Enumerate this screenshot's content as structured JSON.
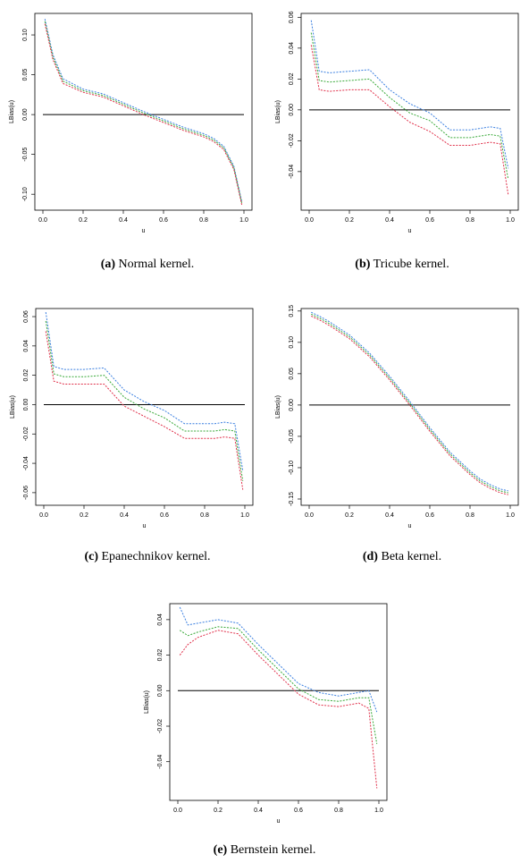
{
  "chart_data": [
    {
      "type": "line",
      "caption_label": "(a)",
      "caption": "Normal kernel.",
      "xlabel": "u",
      "ylabel": "LBias(u)",
      "x": [
        0.01,
        0.05,
        0.1,
        0.2,
        0.3,
        0.4,
        0.5,
        0.6,
        0.7,
        0.8,
        0.85,
        0.9,
        0.95,
        0.99
      ],
      "series": [
        {
          "color": "#3a7fe0",
          "values": [
            0.12,
            0.075,
            0.045,
            0.032,
            0.026,
            0.015,
            0.004,
            -0.006,
            -0.016,
            -0.024,
            -0.03,
            -0.04,
            -0.065,
            -0.11
          ]
        },
        {
          "color": "#3aaa3a",
          "values": [
            0.117,
            0.072,
            0.042,
            0.03,
            0.024,
            0.013,
            0.002,
            -0.008,
            -0.018,
            -0.026,
            -0.032,
            -0.042,
            -0.067,
            -0.112
          ]
        },
        {
          "color": "#e0304a",
          "values": [
            0.114,
            0.069,
            0.039,
            0.028,
            0.022,
            0.011,
            0.0,
            -0.01,
            -0.02,
            -0.028,
            -0.034,
            -0.044,
            -0.069,
            -0.114
          ]
        }
      ],
      "reference_line": 0,
      "xlim": [
        -0.04,
        1.04
      ],
      "ylim": [
        -0.12,
        0.127
      ],
      "xticks": [
        {
          "value": 0,
          "label": "0.0"
        },
        {
          "value": 0.2,
          "label": "0.2"
        },
        {
          "value": 0.4,
          "label": "0.4"
        },
        {
          "value": 0.6,
          "label": "0.6"
        },
        {
          "value": 0.8,
          "label": "0.8"
        },
        {
          "value": 1,
          "label": "1.0"
        }
      ],
      "yticks": [
        {
          "value": -0.1,
          "label": "-0.10"
        },
        -0.05,
        {
          "value": 0,
          "label": "0.00"
        },
        0.05,
        {
          "value": 0.1,
          "label": "0.10"
        }
      ]
    },
    {
      "type": "line",
      "caption_label": "(b)",
      "caption": "Tricube kernel.",
      "xlabel": "u",
      "ylabel": "LBias(u)",
      "x": [
        0.01,
        0.05,
        0.1,
        0.2,
        0.3,
        0.4,
        0.5,
        0.6,
        0.7,
        0.8,
        0.85,
        0.9,
        0.95,
        0.99
      ],
      "series": [
        {
          "color": "#3a7fe0",
          "values": [
            0.058,
            0.025,
            0.024,
            0.025,
            0.026,
            0.013,
            0.004,
            -0.002,
            -0.013,
            -0.013,
            -0.012,
            -0.011,
            -0.012,
            -0.038
          ]
        },
        {
          "color": "#3aaa3a",
          "values": [
            0.05,
            0.019,
            0.018,
            0.019,
            0.02,
            0.008,
            -0.002,
            -0.007,
            -0.018,
            -0.018,
            -0.017,
            -0.016,
            -0.017,
            -0.045
          ]
        },
        {
          "color": "#e0304a",
          "values": [
            0.042,
            0.013,
            0.012,
            0.013,
            0.013,
            0.002,
            -0.008,
            -0.014,
            -0.023,
            -0.023,
            -0.022,
            -0.021,
            -0.022,
            -0.055
          ]
        }
      ],
      "reference_line": 0,
      "xlim": [
        -0.04,
        1.04
      ],
      "ylim": [
        -0.065,
        0.0625
      ],
      "xticks": [
        {
          "value": 0,
          "label": "0.0"
        },
        {
          "value": 0.2,
          "label": "0.2"
        },
        {
          "value": 0.4,
          "label": "0.4"
        },
        {
          "value": 0.6,
          "label": "0.6"
        },
        {
          "value": 0.8,
          "label": "0.8"
        },
        {
          "value": 1,
          "label": "1.0"
        }
      ],
      "yticks": [
        -0.04,
        -0.02,
        {
          "value": 0,
          "label": "0.00"
        },
        0.02,
        0.04,
        0.06
      ]
    },
    {
      "type": "line",
      "caption_label": "(c)",
      "caption": "Epanechnikov kernel.",
      "xlabel": "u",
      "ylabel": "LBias(u)",
      "x": [
        0.01,
        0.05,
        0.1,
        0.2,
        0.3,
        0.4,
        0.5,
        0.6,
        0.7,
        0.8,
        0.85,
        0.9,
        0.95,
        0.99
      ],
      "series": [
        {
          "color": "#3a7fe0",
          "values": [
            0.063,
            0.026,
            0.024,
            0.024,
            0.025,
            0.01,
            0.002,
            -0.004,
            -0.013,
            -0.013,
            -0.013,
            -0.012,
            -0.013,
            -0.045
          ]
        },
        {
          "color": "#3aaa3a",
          "values": [
            0.057,
            0.021,
            0.019,
            0.019,
            0.02,
            0.005,
            -0.003,
            -0.009,
            -0.018,
            -0.018,
            -0.018,
            -0.017,
            -0.018,
            -0.052
          ]
        },
        {
          "color": "#e0304a",
          "values": [
            0.05,
            0.016,
            0.014,
            0.014,
            0.014,
            -0.001,
            -0.008,
            -0.015,
            -0.023,
            -0.023,
            -0.023,
            -0.022,
            -0.023,
            -0.058
          ]
        }
      ],
      "reference_line": 0,
      "xlim": [
        -0.04,
        1.04
      ],
      "ylim": [
        -0.0686,
        0.0655
      ],
      "xticks": [
        {
          "value": 0,
          "label": "0.0"
        },
        {
          "value": 0.2,
          "label": "0.2"
        },
        {
          "value": 0.4,
          "label": "0.4"
        },
        {
          "value": 0.6,
          "label": "0.6"
        },
        {
          "value": 0.8,
          "label": "0.8"
        },
        {
          "value": 1,
          "label": "1.0"
        }
      ],
      "yticks": [
        -0.06,
        -0.04,
        -0.02,
        {
          "value": 0,
          "label": "0.00"
        },
        0.02,
        0.04,
        0.06
      ]
    },
    {
      "type": "line",
      "caption_label": "(d)",
      "caption": "Beta kernel.",
      "xlabel": "u",
      "ylabel": "LBias(u)",
      "x": [
        0.01,
        0.05,
        0.1,
        0.2,
        0.3,
        0.4,
        0.5,
        0.6,
        0.7,
        0.8,
        0.85,
        0.9,
        0.95,
        0.99
      ],
      "series": [
        {
          "color": "#3a7fe0",
          "values": [
            0.148,
            0.142,
            0.133,
            0.112,
            0.083,
            0.046,
            0.006,
            -0.036,
            -0.075,
            -0.105,
            -0.118,
            -0.127,
            -0.134,
            -0.137
          ]
        },
        {
          "color": "#3aaa3a",
          "values": [
            0.145,
            0.139,
            0.13,
            0.109,
            0.08,
            0.043,
            0.003,
            -0.039,
            -0.078,
            -0.108,
            -0.121,
            -0.13,
            -0.137,
            -0.14
          ]
        },
        {
          "color": "#e0304a",
          "values": [
            0.142,
            0.136,
            0.127,
            0.106,
            0.077,
            0.04,
            0.0,
            -0.042,
            -0.081,
            -0.111,
            -0.124,
            -0.133,
            -0.14,
            -0.143
          ]
        }
      ],
      "reference_line": 0,
      "xlim": [
        -0.04,
        1.04
      ],
      "ylim": [
        -0.16,
        0.154
      ],
      "xticks": [
        {
          "value": 0,
          "label": "0.0"
        },
        {
          "value": 0.2,
          "label": "0.2"
        },
        {
          "value": 0.4,
          "label": "0.4"
        },
        {
          "value": 0.6,
          "label": "0.6"
        },
        {
          "value": 0.8,
          "label": "0.8"
        },
        {
          "value": 1,
          "label": "1.0"
        }
      ],
      "yticks": [
        -0.15,
        {
          "value": -0.1,
          "label": "-0.10"
        },
        -0.05,
        {
          "value": 0,
          "label": "0.00"
        },
        0.05,
        {
          "value": 0.1,
          "label": "0.10"
        },
        0.15
      ]
    },
    {
      "type": "line",
      "caption_label": "(e)",
      "caption": "Bernstein kernel.",
      "xlabel": "u",
      "ylabel": "LBias(u)",
      "x": [
        0.01,
        0.05,
        0.1,
        0.2,
        0.3,
        0.4,
        0.5,
        0.6,
        0.7,
        0.8,
        0.85,
        0.9,
        0.95,
        0.99
      ],
      "series": [
        {
          "color": "#3a7fe0",
          "values": [
            0.047,
            0.037,
            0.038,
            0.04,
            0.038,
            0.026,
            0.015,
            0.004,
            -0.001,
            -0.003,
            -0.002,
            -0.001,
            0.0,
            -0.012
          ]
        },
        {
          "color": "#3aaa3a",
          "values": [
            0.034,
            0.031,
            0.033,
            0.036,
            0.035,
            0.023,
            0.012,
            0.001,
            -0.005,
            -0.006,
            -0.005,
            -0.004,
            -0.004,
            -0.03
          ]
        },
        {
          "color": "#e0304a",
          "values": [
            0.02,
            0.026,
            0.03,
            0.034,
            0.032,
            0.02,
            0.009,
            -0.002,
            -0.008,
            -0.009,
            -0.008,
            -0.007,
            -0.01,
            -0.055
          ]
        }
      ],
      "reference_line": 0,
      "xlim": [
        -0.04,
        1.04
      ],
      "ylim": [
        -0.0618,
        0.049
      ],
      "xticks": [
        {
          "value": 0,
          "label": "0.0"
        },
        {
          "value": 0.2,
          "label": "0.2"
        },
        {
          "value": 0.4,
          "label": "0.4"
        },
        {
          "value": 0.6,
          "label": "0.6"
        },
        {
          "value": 0.8,
          "label": "0.8"
        },
        {
          "value": 1,
          "label": "1.0"
        }
      ],
      "yticks": [
        -0.04,
        -0.02,
        {
          "value": 0,
          "label": "0.00"
        },
        0.02,
        0.04
      ]
    }
  ]
}
